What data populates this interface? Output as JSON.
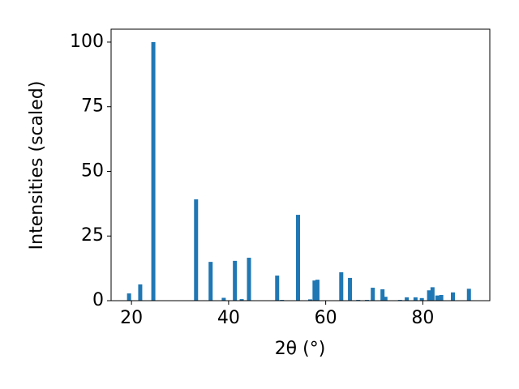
{
  "chart_data": {
    "type": "bar",
    "x_label": "2θ (°)",
    "y_label": "Intensities (scaled)",
    "color": "#1f77b4",
    "x": [
      19.5,
      21.8,
      24.5,
      33.3,
      36.3,
      39.0,
      41.3,
      42.7,
      44.2,
      50.0,
      51.0,
      54.3,
      56.8,
      57.7,
      58.3,
      63.2,
      65.0,
      66.7,
      68.5,
      69.7,
      71.7,
      72.3,
      75.3,
      76.7,
      78.5,
      79.8,
      81.3,
      82.0,
      83.0,
      83.8,
      86.2,
      89.5
    ],
    "values": [
      2.8,
      6.3,
      100,
      39.2,
      15.0,
      1.1,
      15.4,
      0.6,
      16.6,
      9.7,
      0.3,
      33.2,
      0.5,
      7.8,
      8.1,
      11.0,
      8.8,
      0.3,
      0.3,
      5.0,
      4.4,
      1.5,
      0.3,
      1.3,
      1.3,
      1.0,
      4.0,
      5.2,
      2.0,
      2.2,
      3.2,
      4.6
    ],
    "xlim": [
      15.8,
      93.8
    ],
    "ylim": [
      0,
      105
    ],
    "xticks": [
      20,
      40,
      60,
      80
    ],
    "yticks": [
      0,
      25,
      50,
      75,
      100
    ],
    "grid": false
  }
}
